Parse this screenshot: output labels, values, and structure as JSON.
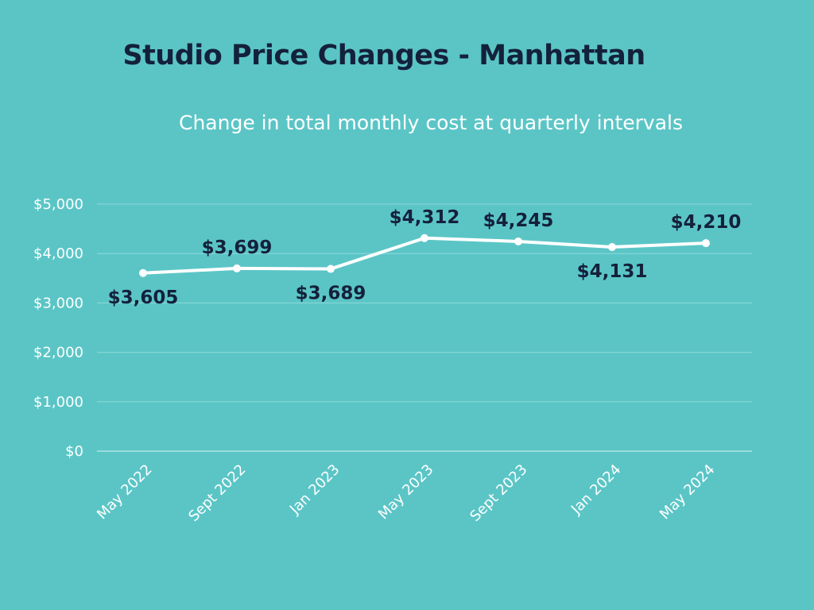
{
  "chart_data": {
    "type": "line",
    "title": "Studio Price Changes - Manhattan",
    "subtitle": "Change in total monthly cost at quarterly intervals",
    "categories": [
      "May 2022",
      "Sept 2022",
      "Jan 2023",
      "May 2023",
      "Sept 2023",
      "Jan 2024",
      "May 2024"
    ],
    "series": [
      {
        "values": [
          3605,
          3699,
          3689,
          4312,
          4245,
          4131,
          4210
        ]
      }
    ],
    "data_labels": [
      "$3,605",
      "$3,699",
      "$3,689",
      "$4,312",
      "$4,245",
      "$4,131",
      "$4,210"
    ],
    "y_ticks": [
      0,
      1000,
      2000,
      3000,
      4000,
      5000
    ],
    "y_tick_labels": [
      "$0",
      "$1,000",
      "$2,000",
      "$3,000",
      "$4,000",
      "$5,000"
    ],
    "ylim": [
      0,
      5000
    ],
    "grid": true,
    "legend": "none",
    "xlabel": "",
    "ylabel": ""
  },
  "colors": {
    "background": "#5bc5c6",
    "line": "#ffffff",
    "gridline": "#8fd8d8",
    "title": "#14213b",
    "data_label": "#14213b",
    "tick_label": "#ffffff"
  }
}
